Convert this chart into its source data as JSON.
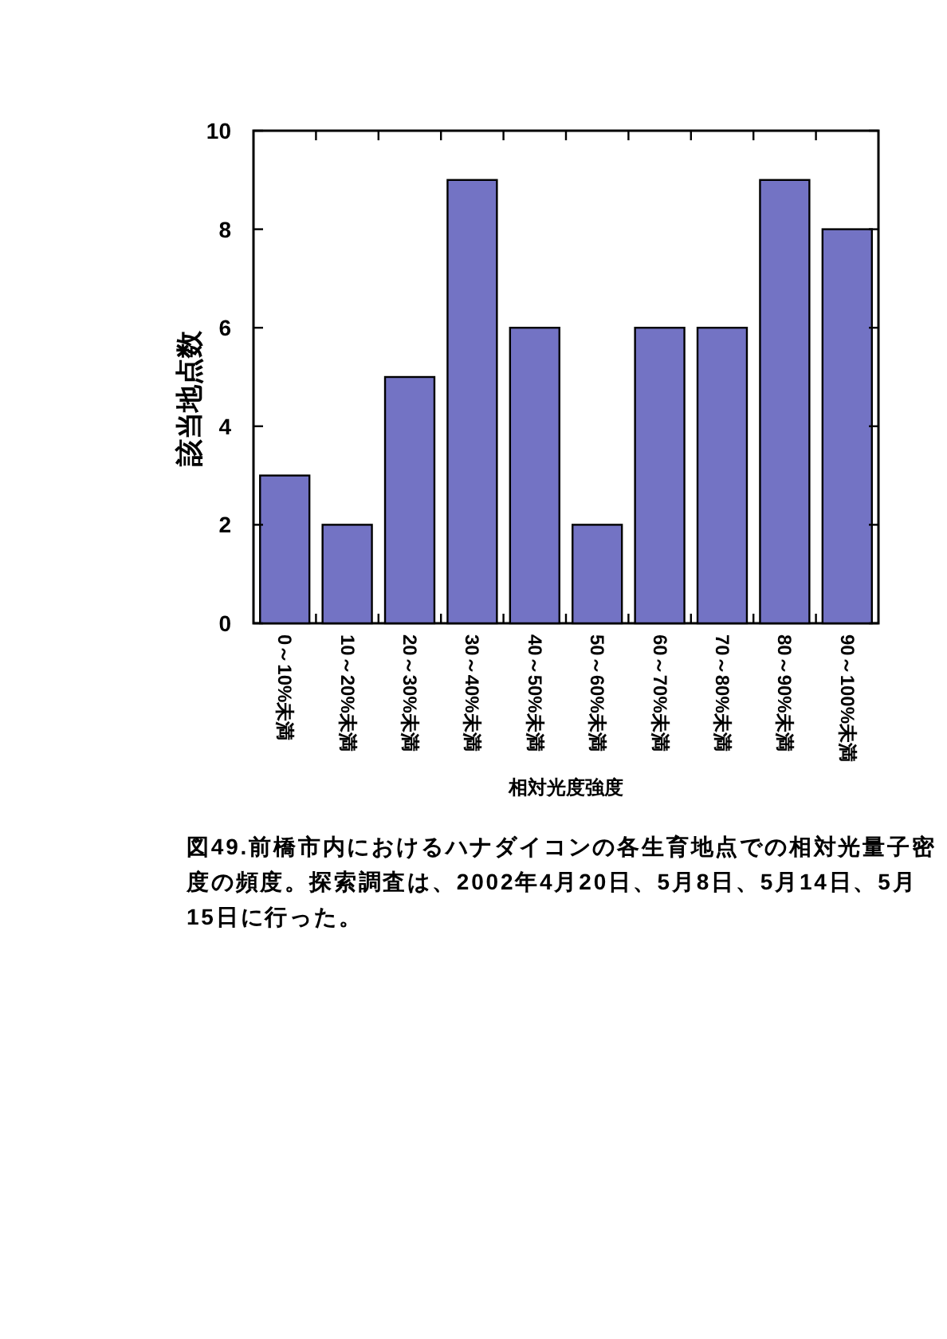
{
  "chart_data": {
    "type": "bar",
    "categories": [
      "0～10%未満",
      "10～20%未満",
      "20～30%未満",
      "30～40%未満",
      "40～50%未満",
      "50～60%未満",
      "60～70%未満",
      "70～80%未満",
      "80～90%未満",
      "90～100%未満"
    ],
    "values": [
      3,
      2,
      5,
      9,
      6,
      2,
      6,
      6,
      9,
      8
    ],
    "color": "#7373c4",
    "ylim": [
      0,
      10
    ],
    "yticks": [
      0,
      2,
      4,
      6,
      8,
      10
    ],
    "ylabel": "該当地点数",
    "xlabel": "相対光度強度",
    "annotations": [
      "図49.前橋市内におけるハナダイコンの各生育地点での相対光量子密度の頻度。探索調査は、2002年4月20日、5月8日、5月14日、5月15日に行った。"
    ]
  }
}
